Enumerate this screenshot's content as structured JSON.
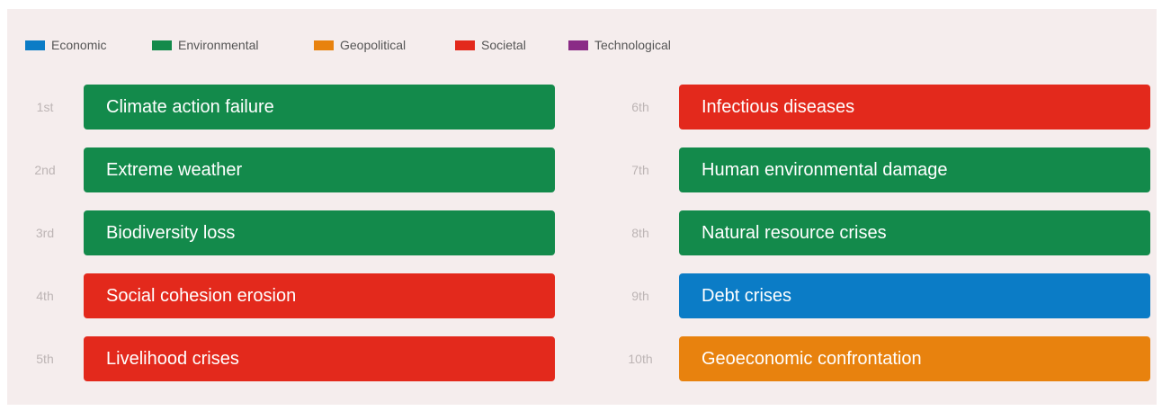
{
  "legend": [
    {
      "name": "Economic",
      "color": "#0b7cc6"
    },
    {
      "name": "Environmental",
      "color": "#138a4b"
    },
    {
      "name": "Geopolitical",
      "color": "#e8820e"
    },
    {
      "name": "Societal",
      "color": "#e3291c"
    },
    {
      "name": "Technological",
      "color": "#8a2b86"
    }
  ],
  "items": [
    {
      "rank": "1st",
      "label": "Climate action failure",
      "category": "Environmental"
    },
    {
      "rank": "2nd",
      "label": "Extreme weather",
      "category": "Environmental"
    },
    {
      "rank": "3rd",
      "label": "Biodiversity loss",
      "category": "Environmental"
    },
    {
      "rank": "4th",
      "label": "Social cohesion erosion",
      "category": "Societal"
    },
    {
      "rank": "5th",
      "label": "Livelihood crises",
      "category": "Societal"
    },
    {
      "rank": "6th",
      "label": "Infectious diseases",
      "category": "Societal"
    },
    {
      "rank": "7th",
      "label": "Human environmental damage",
      "category": "Environmental"
    },
    {
      "rank": "8th",
      "label": "Natural resource crises",
      "category": "Environmental"
    },
    {
      "rank": "9th",
      "label": "Debt crises",
      "category": "Economic"
    },
    {
      "rank": "10th",
      "label": "Geoeconomic confrontation",
      "category": "Geopolitical"
    }
  ]
}
